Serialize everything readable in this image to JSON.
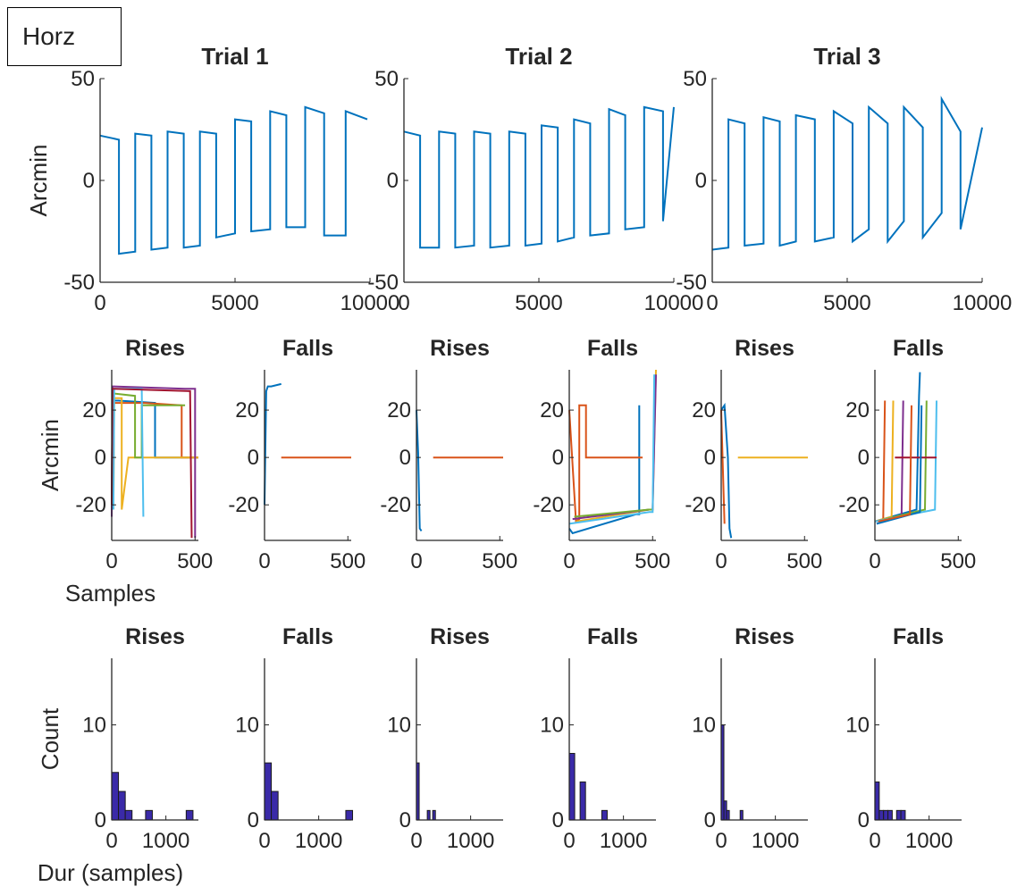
{
  "label_box": "Horz",
  "colors": {
    "axis": "#262626",
    "trace": "#0072BD",
    "bar_fill": "#3a2aa8",
    "bar_edge": "#1b1b1b",
    "palette": [
      "#0072BD",
      "#D95319",
      "#EDB120",
      "#7E2F8E",
      "#77AC30",
      "#4DBEEE",
      "#A2142F"
    ]
  },
  "chart_data": [
    {
      "type": "line",
      "title": "Trial 1",
      "xlim": [
        0,
        10000
      ],
      "ylim": [
        -50,
        50
      ],
      "xticks": [
        "0",
        "5000",
        "10000"
      ],
      "yticks": [
        "50",
        "0",
        "-50"
      ],
      "ylabel": "Arcmin",
      "series": [
        {
          "x": [
            0,
            700,
            700,
            1300,
            1300,
            1900,
            1900,
            2500,
            2500,
            3100,
            3100,
            3700,
            3700,
            4300,
            4300,
            5000,
            5000,
            5600,
            5600,
            6300,
            6300,
            6900,
            6900,
            7600,
            7600,
            8300,
            8300,
            9100,
            9100,
            9900
          ],
          "values": [
            22,
            20,
            -36,
            -35,
            23,
            22,
            -34,
            -33,
            24,
            23,
            -33,
            -32,
            24,
            23,
            -28,
            -26,
            30,
            29,
            -25,
            -24,
            34,
            32,
            -23,
            -23,
            36,
            33,
            -27,
            -27,
            34,
            30
          ]
        }
      ]
    },
    {
      "type": "line",
      "title": "Trial 2",
      "xlim": [
        0,
        10000
      ],
      "ylim": [
        -50,
        50
      ],
      "xticks": [
        "0",
        "5000",
        "10000"
      ],
      "yticks": [
        "50",
        "0",
        "-50"
      ],
      "series": [
        {
          "x": [
            0,
            600,
            600,
            1300,
            1300,
            1900,
            1900,
            2600,
            2600,
            3200,
            3200,
            3900,
            3900,
            4500,
            4500,
            5100,
            5100,
            5700,
            5700,
            6300,
            6300,
            6900,
            6900,
            7600,
            7600,
            8200,
            8200,
            8900,
            8900,
            9600,
            9600,
            10000
          ],
          "values": [
            24,
            22,
            -33,
            -33,
            24,
            23,
            -33,
            -32,
            24,
            23,
            -33,
            -32,
            24,
            23,
            -32,
            -31,
            27,
            26,
            -30,
            -28,
            30,
            28,
            -27,
            -26,
            35,
            32,
            -24,
            -23,
            36,
            34,
            -20,
            36
          ]
        }
      ]
    },
    {
      "type": "line",
      "title": "Trial 3",
      "xlim": [
        0,
        10000
      ],
      "ylim": [
        -50,
        50
      ],
      "xticks": [
        "0",
        "5000",
        "10000"
      ],
      "yticks": [
        "50",
        "0",
        "-50"
      ],
      "series": [
        {
          "x": [
            0,
            600,
            600,
            1200,
            1200,
            1900,
            1900,
            2500,
            2500,
            3100,
            3100,
            3800,
            3800,
            4500,
            4500,
            5200,
            5200,
            5800,
            5800,
            6500,
            6500,
            7100,
            7100,
            7800,
            7800,
            8500,
            8500,
            9200,
            9200,
            10000
          ],
          "values": [
            -34,
            -33,
            30,
            28,
            -32,
            -31,
            31,
            29,
            -32,
            -30,
            32,
            30,
            -30,
            -28,
            34,
            28,
            -30,
            -24,
            36,
            28,
            -30,
            -20,
            36,
            26,
            -28,
            -16,
            40,
            24,
            -24,
            26
          ]
        }
      ]
    },
    {
      "type": "line",
      "title": "Rises",
      "xlim": [
        0,
        520
      ],
      "ylim": [
        -35,
        37
      ],
      "xticks": [
        "0",
        "500"
      ],
      "yticks": [
        "20",
        "0",
        "-20"
      ],
      "ylabel": "Arcmin",
      "xlabel": "Samples",
      "series": [
        {
          "x": [
            0,
            5,
            40,
            260,
            260,
            520
          ],
          "values": [
            -20,
            24,
            24,
            23,
            0,
            0
          ]
        },
        {
          "x": [
            5,
            10,
            200,
            420,
            420,
            520
          ],
          "values": [
            -22,
            23,
            23,
            22,
            0,
            0
          ]
        },
        {
          "x": [
            10,
            15,
            60,
            60,
            100,
            100,
            520
          ],
          "values": [
            -22,
            25,
            25,
            -22,
            0,
            0,
            0
          ]
        },
        {
          "x": [
            0,
            5,
            440,
            500,
            500
          ],
          "values": [
            -25,
            30,
            29,
            29,
            -34
          ]
        },
        {
          "x": [
            5,
            10,
            140,
            140,
            180,
            180,
            440
          ],
          "values": [
            -20,
            27,
            26,
            0,
            0,
            22,
            22
          ]
        },
        {
          "x": [
            10,
            15,
            180,
            190
          ],
          "values": [
            -22,
            29,
            29,
            -25
          ]
        },
        {
          "x": [
            0,
            5,
            470,
            480
          ],
          "values": [
            -20,
            29,
            28,
            -34
          ]
        }
      ]
    },
    {
      "type": "line",
      "title": "Falls",
      "xlim": [
        0,
        520
      ],
      "ylim": [
        -35,
        37
      ],
      "xticks": [
        "0",
        "500"
      ],
      "yticks": [
        "20",
        "0",
        "-20"
      ],
      "series": [
        {
          "x": [
            0,
            10,
            20,
            40,
            100
          ],
          "values": [
            -20,
            28,
            30,
            30,
            31
          ]
        },
        {
          "x": [
            100,
            520
          ],
          "values": [
            0,
            0
          ]
        }
      ]
    },
    {
      "type": "line",
      "title": "Rises",
      "xlim": [
        0,
        520
      ],
      "ylim": [
        -35,
        37
      ],
      "xticks": [
        "0",
        "500"
      ],
      "yticks": [
        "20",
        "0",
        "-20"
      ],
      "series": [
        {
          "x": [
            0,
            10,
            20,
            30
          ],
          "values": [
            20,
            2,
            -30,
            -31
          ]
        },
        {
          "x": [
            100,
            520
          ],
          "values": [
            0,
            0
          ]
        }
      ]
    },
    {
      "type": "line",
      "title": "Falls",
      "xlim": [
        0,
        520
      ],
      "ylim": [
        -35,
        37
      ],
      "xticks": [
        "0",
        "500"
      ],
      "yticks": [
        "20",
        "0",
        "-20"
      ],
      "series": [
        {
          "x": [
            0,
            20,
            400,
            420,
            420
          ],
          "values": [
            -30,
            -32,
            -24,
            -24,
            22
          ]
        },
        {
          "x": [
            0,
            40,
            60,
            60,
            100,
            100,
            440
          ],
          "values": [
            20,
            -27,
            -26,
            22,
            22,
            0,
            0
          ]
        },
        {
          "x": [
            40,
            480,
            500,
            520
          ],
          "values": [
            -27,
            -22,
            -22,
            37
          ]
        },
        {
          "x": [
            20,
            480,
            500,
            520
          ],
          "values": [
            -26,
            -22,
            -22,
            35
          ]
        },
        {
          "x": [
            30,
            480,
            500
          ],
          "values": [
            -25,
            -22,
            -22
          ]
        },
        {
          "x": [
            0,
            480,
            500,
            510
          ],
          "values": [
            -28,
            -23,
            -23,
            35
          ]
        }
      ]
    },
    {
      "type": "line",
      "title": "Rises",
      "xlim": [
        0,
        520
      ],
      "ylim": [
        -35,
        37
      ],
      "xticks": [
        "0",
        "500"
      ],
      "yticks": [
        "20",
        "0",
        "-20"
      ],
      "series": [
        {
          "x": [
            0,
            20,
            40,
            50,
            60
          ],
          "values": [
            20,
            22,
            0,
            -30,
            -34
          ]
        },
        {
          "x": [
            0,
            10,
            20
          ],
          "values": [
            20,
            -5,
            -28
          ]
        },
        {
          "x": [
            100,
            520
          ],
          "values": [
            0,
            0
          ]
        }
      ]
    },
    {
      "type": "line",
      "title": "Falls",
      "xlim": [
        0,
        520
      ],
      "ylim": [
        -35,
        37
      ],
      "xticks": [
        "0",
        "500"
      ],
      "yticks": [
        "20",
        "0",
        "-20"
      ],
      "series": [
        {
          "x": [
            0,
            250,
            265,
            270
          ],
          "values": [
            -27,
            -22,
            26,
            36
          ]
        },
        {
          "x": [
            0,
            50,
            60
          ],
          "values": [
            -27,
            -26,
            24
          ]
        },
        {
          "x": [
            0,
            100,
            110
          ],
          "values": [
            -27,
            -25,
            24
          ]
        },
        {
          "x": [
            0,
            160,
            170
          ],
          "values": [
            -27,
            -25,
            24
          ]
        },
        {
          "x": [
            0,
            300,
            310
          ],
          "values": [
            -27,
            -22,
            24
          ]
        },
        {
          "x": [
            0,
            360,
            370
          ],
          "values": [
            -27,
            -22,
            24
          ]
        },
        {
          "x": [
            120,
            370
          ],
          "values": [
            0,
            0
          ]
        },
        {
          "x": [
            10,
            270,
            280
          ],
          "values": [
            -28,
            -23,
            22
          ]
        },
        {
          "x": [
            20,
            210,
            220
          ],
          "values": [
            -27,
            -24,
            22
          ]
        }
      ]
    },
    {
      "type": "bar",
      "title": "Rises",
      "xlim": [
        0,
        1600
      ],
      "ylim": [
        0,
        17
      ],
      "xticks": [
        "0",
        "1000"
      ],
      "yticks": [
        "10",
        "0"
      ],
      "ylabel": "Count",
      "xlabel": "Dur (samples)",
      "binwidth": 125,
      "categories": [
        0,
        125,
        250,
        375,
        500,
        625,
        750,
        875,
        1000,
        1125,
        1250,
        1375,
        1500
      ],
      "values": [
        5,
        3,
        1,
        0,
        0,
        1,
        0,
        0,
        0,
        0,
        0,
        1,
        0
      ]
    },
    {
      "type": "bar",
      "title": "Falls",
      "xlim": [
        0,
        1600
      ],
      "ylim": [
        0,
        17
      ],
      "xticks": [
        "0",
        "1000"
      ],
      "yticks": [
        "10",
        "0"
      ],
      "binwidth": 125,
      "categories": [
        0,
        125,
        250,
        375,
        500,
        625,
        750,
        875,
        1000,
        1125,
        1250,
        1375,
        1500
      ],
      "values": [
        6,
        3,
        0,
        0,
        0,
        0,
        0,
        0,
        0,
        0,
        0,
        0,
        1
      ]
    },
    {
      "type": "bar",
      "title": "Rises",
      "xlim": [
        0,
        1600
      ],
      "ylim": [
        0,
        17
      ],
      "xticks": [
        "0",
        "1000"
      ],
      "yticks": [
        "10",
        "0"
      ],
      "binwidth": 50,
      "categories": [
        0,
        50,
        100,
        150,
        200,
        250,
        300
      ],
      "values": [
        6,
        0,
        0,
        0,
        1,
        0,
        1
      ]
    },
    {
      "type": "bar",
      "title": "Falls",
      "xlim": [
        0,
        1600
      ],
      "ylim": [
        0,
        17
      ],
      "xticks": [
        "0",
        "1000"
      ],
      "yticks": [
        "10",
        "0"
      ],
      "binwidth": 100,
      "categories": [
        0,
        100,
        200,
        300,
        400,
        500,
        600,
        700
      ],
      "values": [
        7,
        0,
        4,
        0,
        0,
        0,
        1,
        0
      ]
    },
    {
      "type": "bar",
      "title": "Rises",
      "xlim": [
        0,
        1600
      ],
      "ylim": [
        0,
        17
      ],
      "xticks": [
        "0",
        "1000"
      ],
      "yticks": [
        "10",
        "0"
      ],
      "binwidth": 50,
      "categories": [
        0,
        50,
        100,
        150,
        200,
        250,
        300,
        350
      ],
      "values": [
        10,
        2,
        1,
        0,
        0,
        0,
        0,
        1
      ]
    },
    {
      "type": "bar",
      "title": "Falls",
      "xlim": [
        0,
        1600
      ],
      "ylim": [
        0,
        17
      ],
      "xticks": [
        "0",
        "1000"
      ],
      "yticks": [
        "10",
        "0"
      ],
      "binwidth": 80,
      "categories": [
        0,
        80,
        160,
        240,
        320,
        400,
        480,
        560
      ],
      "values": [
        4,
        1,
        1,
        1,
        0,
        1,
        1,
        0
      ]
    }
  ]
}
